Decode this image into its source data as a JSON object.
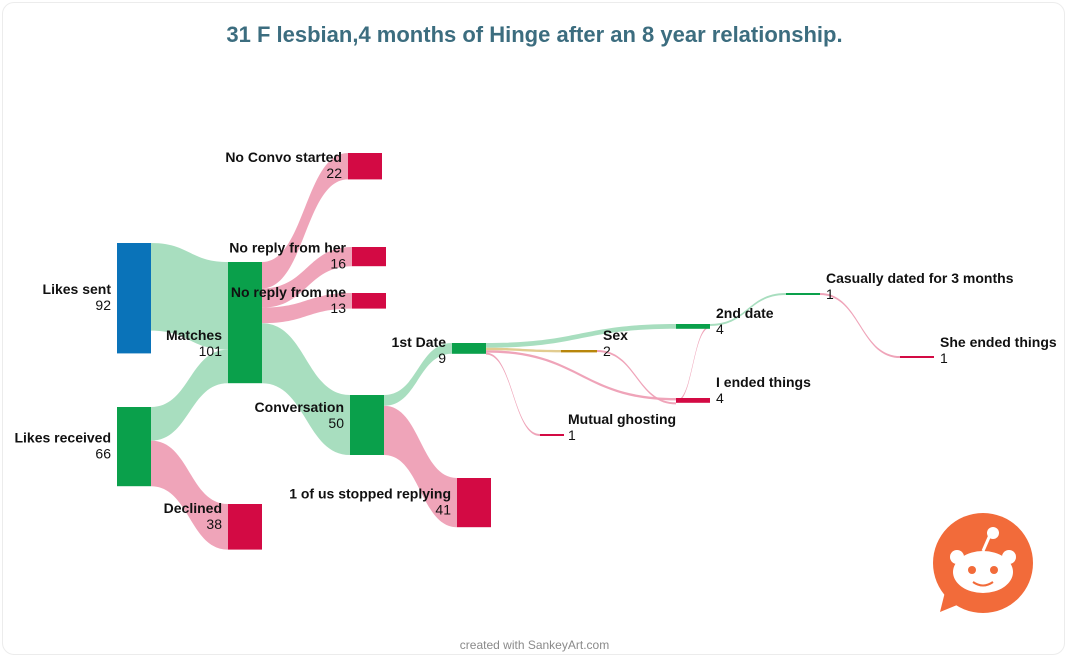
{
  "chart_data": {
    "type": "sankey",
    "title": "31 F lesbian,4 months of Hinge after an 8 year relationship.",
    "nodes": [
      {
        "id": "likes_sent",
        "name": "Likes sent",
        "value": 92,
        "color": "#0a73b9"
      },
      {
        "id": "likes_received",
        "name": "Likes received",
        "value": 66,
        "color": "#0aa04b"
      },
      {
        "id": "matches",
        "name": "Matches",
        "value": 101,
        "color": "#0aa04b"
      },
      {
        "id": "declined",
        "name": "Declined",
        "value": 38,
        "color": "#d30a44"
      },
      {
        "id": "no_convo",
        "name": "No Convo started",
        "value": 22,
        "color": "#d30a44"
      },
      {
        "id": "no_reply_her",
        "name": "No reply from her",
        "value": 16,
        "color": "#d30a44"
      },
      {
        "id": "no_reply_me",
        "name": "No reply from me",
        "value": 13,
        "color": "#d30a44"
      },
      {
        "id": "conversation",
        "name": "Conversation",
        "value": 50,
        "color": "#0aa04b"
      },
      {
        "id": "stopped",
        "name": "1 of us stopped replying",
        "value": 41,
        "color": "#d30a44"
      },
      {
        "id": "first_date",
        "name": "1st Date",
        "value": 9,
        "color": "#0aa04b"
      },
      {
        "id": "second_date",
        "name": "2nd date",
        "value": 4,
        "color": "#0aa04b"
      },
      {
        "id": "sex",
        "name": "Sex",
        "value": 2,
        "color": "#b8860b"
      },
      {
        "id": "i_ended",
        "name": "I ended things",
        "value": 4,
        "color": "#d30a44"
      },
      {
        "id": "mutual_ghost",
        "name": "Mutual ghosting",
        "value": 1,
        "color": "#d30a44"
      },
      {
        "id": "casually",
        "name": "Casually dated for 3 months",
        "value": 1,
        "color": "#0aa04b"
      },
      {
        "id": "she_ended",
        "name": "She ended things",
        "value": 1,
        "color": "#d30a44"
      }
    ],
    "links": [
      {
        "source": "likes_sent",
        "target": "matches",
        "value": 73
      },
      {
        "source": "likes_received",
        "target": "matches",
        "value": 28
      },
      {
        "source": "likes_received",
        "target": "declined",
        "value": 38
      },
      {
        "source": "matches",
        "target": "no_convo",
        "value": 22
      },
      {
        "source": "matches",
        "target": "no_reply_her",
        "value": 16
      },
      {
        "source": "matches",
        "target": "no_reply_me",
        "value": 13
      },
      {
        "source": "matches",
        "target": "conversation",
        "value": 50
      },
      {
        "source": "conversation",
        "target": "first_date",
        "value": 9
      },
      {
        "source": "conversation",
        "target": "stopped",
        "value": 41
      },
      {
        "source": "first_date",
        "target": "second_date",
        "value": 4
      },
      {
        "source": "first_date",
        "target": "sex",
        "value": 2
      },
      {
        "source": "first_date",
        "target": "i_ended",
        "value": 2
      },
      {
        "source": "first_date",
        "target": "mutual_ghost",
        "value": 1
      },
      {
        "source": "second_date",
        "target": "casually",
        "value": 1
      },
      {
        "source": "second_date",
        "target": "i_ended",
        "value": 1
      },
      {
        "source": "sex",
        "target": "i_ended",
        "value": 1
      },
      {
        "source": "casually",
        "target": "she_ended",
        "value": 1
      }
    ],
    "colors": {
      "good_link": "#a3dcbc",
      "bad_link": "#ee9fb5",
      "sex_link": "#e0c98a"
    }
  },
  "footer": "created with SankeyArt.com",
  "logo": {
    "name": "reddit-logo",
    "color": "#f26b3a"
  }
}
